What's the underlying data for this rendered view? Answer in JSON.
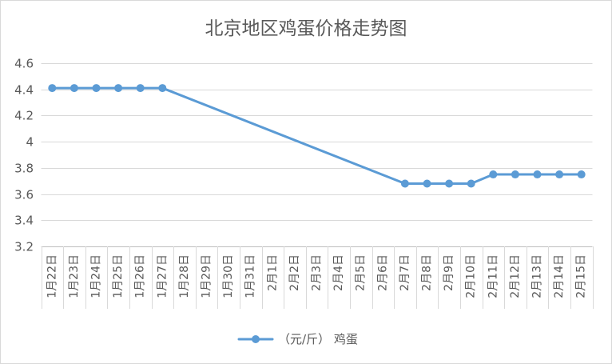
{
  "chart_data": {
    "type": "line",
    "title": "北京地区鸡蛋价格走势图",
    "categories": [
      "1月22日",
      "1月23日",
      "1月24日",
      "1月25日",
      "1月26日",
      "1月27日",
      "1月28日",
      "1月29日",
      "1月30日",
      "1月31日",
      "2月1日",
      "2月2日",
      "2月3日",
      "2月4日",
      "2月5日",
      "2月6日",
      "2月7日",
      "2月8日",
      "2月9日",
      "2月10日",
      "2月11日",
      "2月12日",
      "2月13日",
      "2月14日",
      "2月15日"
    ],
    "series": [
      {
        "name": "（元/斤） 鸡蛋",
        "color": "#5B9BD5",
        "values": [
          4.41,
          4.41,
          4.41,
          4.41,
          4.41,
          4.41,
          null,
          null,
          null,
          null,
          null,
          null,
          null,
          null,
          null,
          null,
          3.68,
          3.68,
          3.68,
          3.68,
          3.75,
          3.75,
          3.75,
          3.75,
          3.75
        ]
      }
    ],
    "ylim": [
      3.2,
      4.6
    ],
    "yticks": [
      3.2,
      3.4,
      3.6,
      3.8,
      4,
      4.2,
      4.4,
      4.6
    ],
    "grid": true,
    "legend": "bottom-center",
    "empty_points": "connected"
  }
}
